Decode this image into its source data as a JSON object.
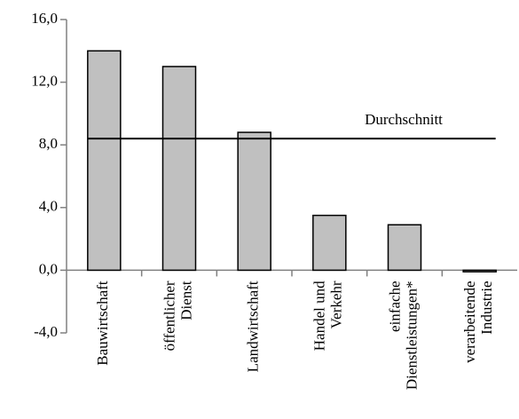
{
  "chart_data": {
    "type": "bar",
    "categories": [
      [
        "Bauwirtschaft"
      ],
      [
        "öffentlicher",
        "Dienst"
      ],
      [
        "Landwirtschaft"
      ],
      [
        "Handel und",
        "Verkehr"
      ],
      [
        "einfache",
        "Dienstleistungen*"
      ],
      [
        "verarbeitende",
        "Industrie"
      ]
    ],
    "values": [
      14.0,
      13.0,
      8.8,
      3.5,
      2.9,
      -0.1
    ],
    "color": "#c0c0c0",
    "ylim": [
      -4,
      16
    ],
    "yticks": [
      {
        "value": -4,
        "label": "-4,0"
      },
      {
        "value": 0,
        "label": "0,0"
      },
      {
        "value": 4,
        "label": "4,0"
      },
      {
        "value": 8,
        "label": "8,0"
      },
      {
        "value": 12,
        "label": "12,0"
      },
      {
        "value": 16,
        "label": "16,0"
      }
    ],
    "average": 8.4,
    "average_label": "Durchschnitt",
    "grid": false
  }
}
